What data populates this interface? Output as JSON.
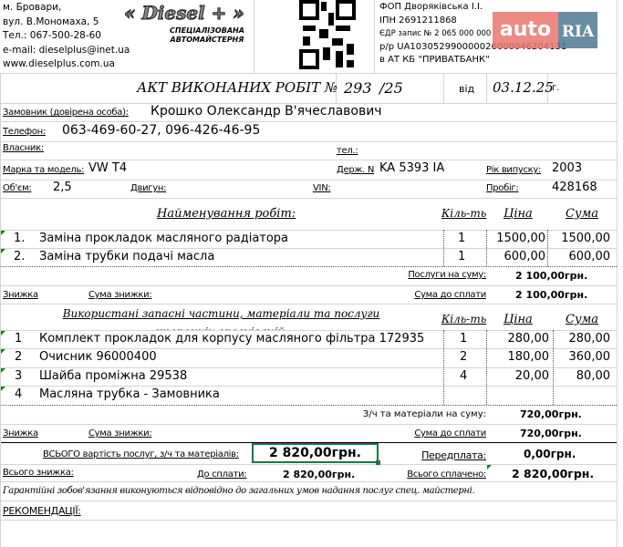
{
  "header": {
    "address": [
      "м. Бровари,",
      "вул. В.Мономаха, 5",
      "Тел.: 067-500-28-60",
      "e-mail: dieselplus@inet.ua",
      "www.dieselplus.com.ua"
    ],
    "logo_text": "« Diesel + »",
    "logo_subtitle": [
      "СПЕЦІАЛІЗОВАНА",
      "АВТОМАЙСТЕРНЯ"
    ],
    "company": [
      "ФОП Дворяківська І.І.",
      "ІПН 2691211868",
      "ЄДР запис  № 2 065 000 000",
      "р/р UA103052990000026000046204131",
      "в АТ КБ \"ПРИВАТБАНК\""
    ],
    "watermark": {
      "auto": "auto",
      "ria": "RIA",
      "auto_color": "#e8776f",
      "ria_color": "#4e7a95"
    }
  },
  "act": {
    "title": "АКТ ВИКОНАНИХ РОБІТ №",
    "number": "293",
    "suffix": "/25",
    "from": "від",
    "date": "03.12.25",
    "year_suffix": "г."
  },
  "client": {
    "customer_label": "Замовник (довірена особа):",
    "customer": "Крошко Олександр В'ячеславович",
    "phone_label": "Телефон:",
    "phone": "063-469-60-27, 096-426-46-95",
    "owner_label": "Власник:",
    "owner_phone_label": "тел.:",
    "model_label": "Марка та модель:",
    "model": "VW T4",
    "plate_label": "Держ. N",
    "plate": "KA 5393 IA",
    "year_label": "Рік випуску:",
    "year": "2003",
    "volume_label": "Об'єм:",
    "volume": "2,5",
    "engine_label": "Двигун:",
    "vin_label": "VIN:",
    "mileage_label": "Пробіг:",
    "mileage": "428168"
  },
  "works": {
    "header": {
      "name": "Найменування робіт:",
      "qty": "Кіль-ть",
      "price": "Ціна",
      "sum": "Сума"
    },
    "rows": [
      {
        "n": "1.",
        "name": "Заміна прокладок масляного радіатора",
        "qty": "1",
        "price": "1500,00",
        "sum": "1500,00"
      },
      {
        "n": "2.",
        "name": "Заміна трубки подачі масла",
        "qty": "1",
        "price": "600,00",
        "sum": "600,00"
      }
    ],
    "total_label": "Послуги на суму:",
    "total": "2 100,00грн.",
    "discount_label": "Знижка",
    "discount_sum_label": "Сума знижки:",
    "pay_label": "Сума до сплати",
    "pay": "2 100,00грн."
  },
  "parts": {
    "header": {
      "name": "Використані запасні частини, матеріали та послуги сторонніх організацій:",
      "qty": "Кіль-ть",
      "price": "Ціна",
      "sum": "Сума"
    },
    "rows": [
      {
        "n": "1",
        "name": "Комплект прокладок для корпусу масляного фільтра 172935",
        "qty": "1",
        "price": "280,00",
        "sum": "280,00"
      },
      {
        "n": "2",
        "name": "Очисник 96000400",
        "qty": "2",
        "price": "180,00",
        "sum": "360,00"
      },
      {
        "n": "3",
        "name": "Шайба проміжна 29538",
        "qty": "4",
        "price": "20,00",
        "sum": "80,00"
      },
      {
        "n": "4",
        "name": "Масляна трубка  - Замовника",
        "qty": "",
        "price": "",
        "sum": ""
      }
    ],
    "total_label": "З/ч та матеріали на суму:",
    "total": "720,00грн.",
    "discount_label": "Знижка",
    "discount_sum_label": "Сума знижки:",
    "pay_label": "Сума до сплати",
    "pay": "720,00грн."
  },
  "summary": {
    "total_label": "ВСЬОГО вартість послуг, з/ч та матеріалів:",
    "total": "2 820,00грн.",
    "prepay_label": "Передплата:",
    "prepay": "0,00грн.",
    "discount_label": "Всього знижка:",
    "topay_label": "До сплати:",
    "topay": "2 820,00грн.",
    "paid_label": "Всього сплачено:",
    "paid": "2 820,00грн."
  },
  "warranty": "Гарантійні зобов'язання виконуються відповідно до загальних умов надання послуг спец. майстерні.",
  "recommendations_label": "РЕКОМЕНДАЦІЇ:"
}
